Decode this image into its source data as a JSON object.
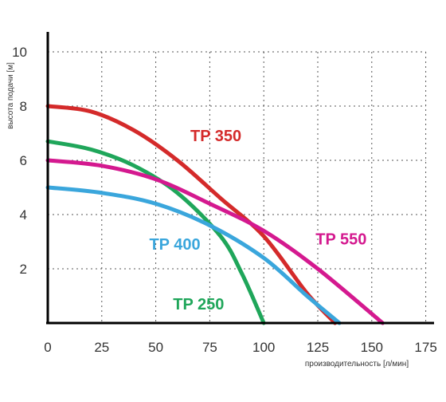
{
  "chart_data": {
    "type": "line",
    "xlabel": "производительность [л/мин]",
    "ylabel": "высота подачи [м]",
    "xlim": [
      0,
      175
    ],
    "ylim": [
      0,
      10
    ],
    "xticks": [
      0,
      25,
      50,
      75,
      100,
      125,
      150,
      175
    ],
    "yticks": [
      2,
      4,
      6,
      8,
      10
    ],
    "grid": true,
    "series": [
      {
        "name": "TP 350",
        "color": "#d42a2a",
        "x": [
          0,
          20,
          40,
          60,
          80,
          100,
          120,
          133
        ],
        "y": [
          8,
          7.8,
          7.1,
          6.0,
          4.6,
          3.2,
          1.1,
          0
        ]
      },
      {
        "name": "TP 250",
        "color": "#1fa65a",
        "x": [
          0,
          20,
          40,
          60,
          80,
          90,
          100
        ],
        "y": [
          6.7,
          6.4,
          5.8,
          4.8,
          3.2,
          1.8,
          0
        ]
      },
      {
        "name": "TP 550",
        "color": "#d4198f",
        "x": [
          0,
          25,
          50,
          75,
          100,
          125,
          155
        ],
        "y": [
          6.0,
          5.8,
          5.3,
          4.4,
          3.4,
          2.0,
          0
        ]
      },
      {
        "name": "TP 400",
        "color": "#3aa6dc",
        "x": [
          0,
          25,
          50,
          75,
          100,
          120,
          135
        ],
        "y": [
          5.0,
          4.8,
          4.4,
          3.6,
          2.4,
          1.0,
          0
        ]
      }
    ]
  }
}
